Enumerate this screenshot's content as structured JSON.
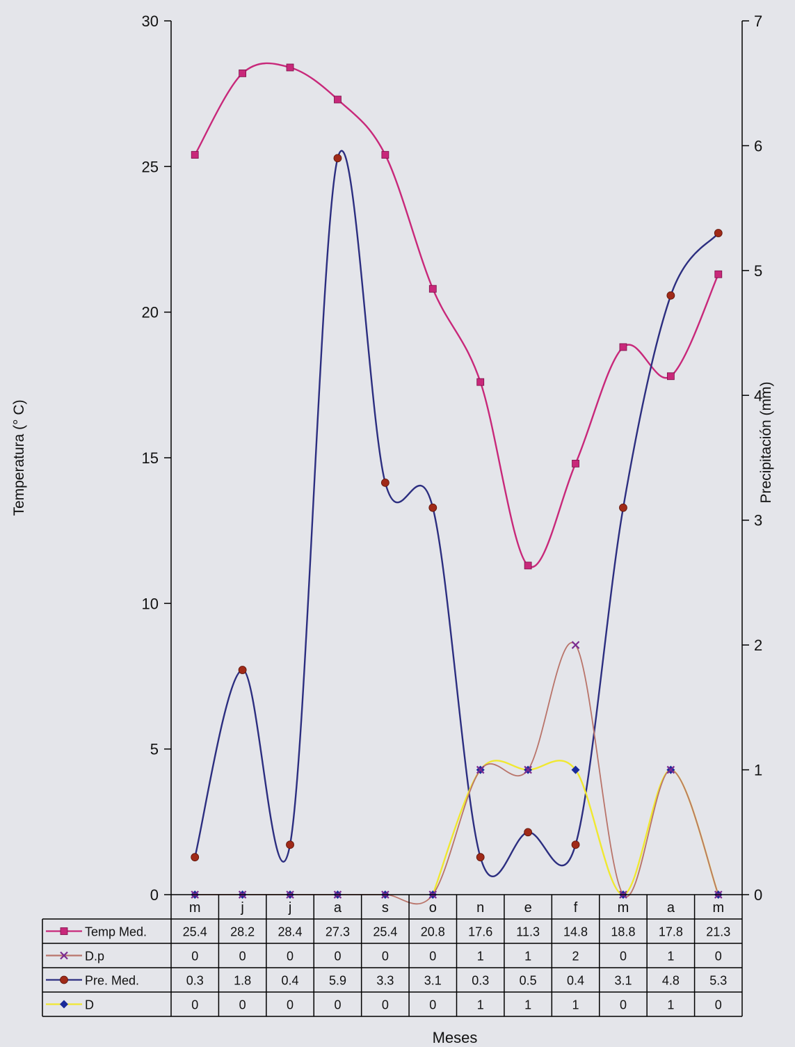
{
  "chart_data": {
    "type": "line",
    "categories": [
      "m",
      "j",
      "j",
      "a",
      "s",
      "o",
      "n",
      "e",
      "f",
      "m",
      "a",
      "m"
    ],
    "xlabel": "Meses",
    "ylabel": "Temperatura (° C)",
    "y2label": "Precipitación (mm)",
    "ylim": [
      0,
      30
    ],
    "y2lim": [
      0,
      7
    ],
    "y_ticks": [
      "0",
      "5",
      "10",
      "15",
      "20",
      "25",
      "30"
    ],
    "y2_ticks": [
      "0",
      "1",
      "2",
      "3",
      "4",
      "5",
      "6",
      "7"
    ],
    "grid": false,
    "legend": "data-table-below",
    "series": [
      {
        "name": "Temp Med.",
        "axis": "left",
        "marker": "square",
        "color": "#c8287a",
        "values": [
          25.4,
          28.2,
          28.4,
          27.3,
          25.4,
          20.8,
          17.6,
          11.3,
          14.8,
          18.8,
          17.8,
          21.3
        ]
      },
      {
        "name": "D.p",
        "axis": "right",
        "marker": "x",
        "color": "#b9746a",
        "values": [
          0,
          0,
          0,
          0,
          0,
          0,
          1,
          1,
          2,
          0,
          1,
          0
        ]
      },
      {
        "name": "Pre. Med.",
        "axis": "right",
        "marker": "circle",
        "color": "#2c2e80",
        "values": [
          0.3,
          1.8,
          0.4,
          5.9,
          3.3,
          3.1,
          0.3,
          0.5,
          0.4,
          3.1,
          4.8,
          5.3
        ]
      },
      {
        "name": "D",
        "axis": "right",
        "marker": "diamond",
        "color": "#f0e830",
        "values": [
          0,
          0,
          0,
          0,
          0,
          0,
          1,
          1,
          1,
          0,
          1,
          0
        ]
      }
    ],
    "table_values": [
      [
        "25.4",
        "28.2",
        "28.4",
        "27.3",
        "25.4",
        "20.8",
        "17.6",
        "11.3",
        "14.8",
        "18.8",
        "17.8",
        "21.3"
      ],
      [
        "0",
        "0",
        "0",
        "0",
        "0",
        "0",
        "1",
        "1",
        "2",
        "0",
        "1",
        "0"
      ],
      [
        "0.3",
        "1.8",
        "0.4",
        "5.9",
        "3.3",
        "3.1",
        "0.3",
        "0.5",
        "0.4",
        "3.1",
        "4.8",
        "5.3"
      ],
      [
        "0",
        "0",
        "0",
        "0",
        "0",
        "0",
        "1",
        "1",
        "1",
        "0",
        "1",
        "0"
      ]
    ]
  }
}
